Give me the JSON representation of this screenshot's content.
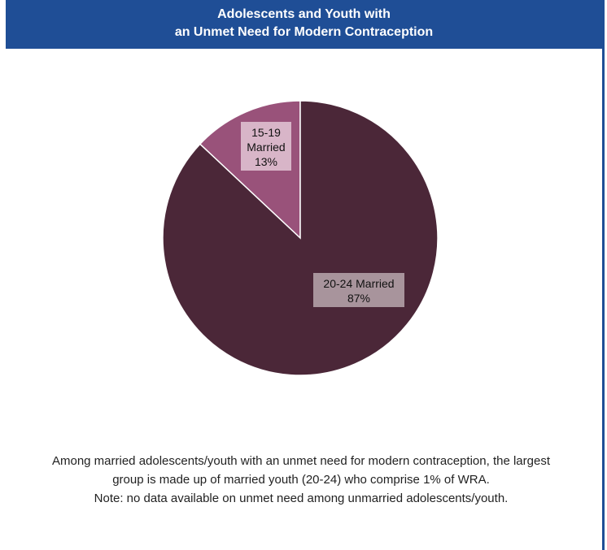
{
  "header": {
    "title_line1": "Adolescents and Youth with",
    "title_line2": "an Unmet Need for Modern Contraception"
  },
  "chart_data": {
    "type": "pie",
    "title": "",
    "slices": [
      {
        "label_lines": [
          "15-19",
          "Married",
          "13%"
        ],
        "value": 13,
        "color": "#99527a",
        "label_bg": "#d8b5c8"
      },
      {
        "label_lines": [
          "20-24 Married",
          "87%"
        ],
        "value": 87,
        "color": "#4b2738",
        "label_bg": "#a8949c"
      }
    ]
  },
  "caption": {
    "line1": "Among married adolescents/youth with an unmet need for modern contraception, the largest",
    "line2": "group is made up of married youth (20-24) who comprise 1% of WRA.",
    "line3": "Note: no data available on unmet need among unmarried adolescents/youth."
  },
  "colors": {
    "header_bg": "#1f4e96",
    "header_text": "#ffffff"
  }
}
